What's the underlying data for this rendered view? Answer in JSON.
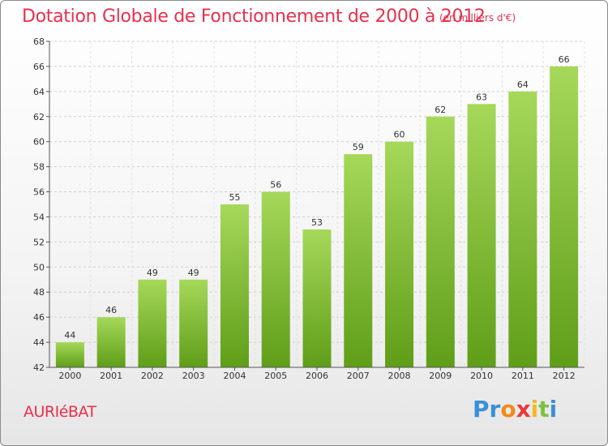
{
  "title": "Dotation Globale de Fonctionnement de 2000 à 2012",
  "subtitle": "(en milliers d'€)",
  "commune": "AURIéBAT",
  "logo": {
    "letters": [
      "P",
      "r",
      "o",
      "x",
      "i",
      "t",
      "i"
    ],
    "colors": [
      "#3a8fd8",
      "#3a8fd8",
      "#f08a1c",
      "#e83a3a",
      "#f5b81e",
      "#7cc242",
      "#3a8fd8"
    ]
  },
  "colors": {
    "bar_light": "#a6d85a",
    "bar_dark": "#5f9e18",
    "title": "#e8304d"
  },
  "chart_data": {
    "type": "bar",
    "title": "Dotation Globale de Fonctionnement de 2000 à 2012",
    "subtitle": "(en milliers d'€)",
    "categories": [
      "2000",
      "2001",
      "2002",
      "2003",
      "2004",
      "2005",
      "2006",
      "2007",
      "2008",
      "2009",
      "2010",
      "2011",
      "2012"
    ],
    "values": [
      44,
      46,
      49,
      49,
      55,
      56,
      53,
      59,
      60,
      62,
      63,
      64,
      66
    ],
    "ylim": [
      42,
      68
    ],
    "yticks": [
      42,
      44,
      46,
      48,
      50,
      52,
      54,
      56,
      58,
      60,
      62,
      64,
      66,
      68
    ],
    "grid": true,
    "xlabel": "",
    "ylabel": ""
  }
}
